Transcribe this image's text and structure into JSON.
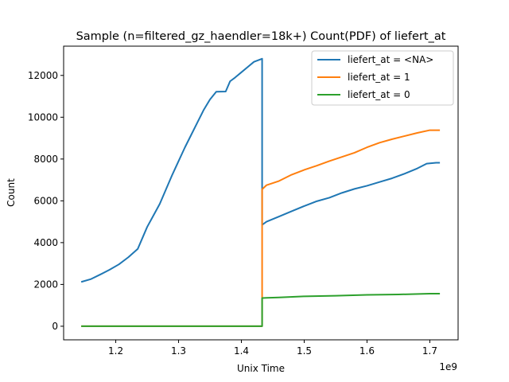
{
  "chart_data": {
    "type": "line",
    "title": "Sample (n=filtered_gz_haendler=18k+) Count(PDF) of liefert_at",
    "xlabel": "Unix Time",
    "ylabel": "Count",
    "x_offset_label": "1e9",
    "xlim": [
      1.117,
      1.745
    ],
    "ylim": [
      -650,
      13400
    ],
    "x_unit_multiplier": 1000000000,
    "xticks": [
      {
        "value": 1.2,
        "label": "1.2"
      },
      {
        "value": 1.3,
        "label": "1.3"
      },
      {
        "value": 1.4,
        "label": "1.4"
      },
      {
        "value": 1.5,
        "label": "1.5"
      },
      {
        "value": 1.6,
        "label": "1.6"
      },
      {
        "value": 1.7,
        "label": "1.7"
      }
    ],
    "yticks": [
      {
        "value": 0,
        "label": "0"
      },
      {
        "value": 2000,
        "label": "2000"
      },
      {
        "value": 4000,
        "label": "4000"
      },
      {
        "value": 6000,
        "label": "6000"
      },
      {
        "value": 8000,
        "label": "8000"
      },
      {
        "value": 10000,
        "label": "10000"
      },
      {
        "value": 12000,
        "label": "12000"
      }
    ],
    "grid": false,
    "legend_position": "top-right",
    "series": [
      {
        "name": "liefert_at = <NA>",
        "color": "#1f77b4",
        "points": [
          [
            1.145,
            2120
          ],
          [
            1.16,
            2250
          ],
          [
            1.175,
            2470
          ],
          [
            1.19,
            2700
          ],
          [
            1.205,
            2960
          ],
          [
            1.22,
            3300
          ],
          [
            1.235,
            3700
          ],
          [
            1.24,
            4050
          ],
          [
            1.25,
            4750
          ],
          [
            1.26,
            5300
          ],
          [
            1.27,
            5850
          ],
          [
            1.28,
            6550
          ],
          [
            1.29,
            7250
          ],
          [
            1.3,
            7900
          ],
          [
            1.31,
            8550
          ],
          [
            1.32,
            9150
          ],
          [
            1.33,
            9750
          ],
          [
            1.34,
            10350
          ],
          [
            1.35,
            10850
          ],
          [
            1.36,
            11220
          ],
          [
            1.375,
            11230
          ],
          [
            1.382,
            11720
          ],
          [
            1.39,
            11900
          ],
          [
            1.4,
            12150
          ],
          [
            1.41,
            12400
          ],
          [
            1.42,
            12650
          ],
          [
            1.433,
            12800
          ],
          [
            1.433,
            4850
          ],
          [
            1.44,
            5000
          ],
          [
            1.46,
            5250
          ],
          [
            1.48,
            5500
          ],
          [
            1.5,
            5750
          ],
          [
            1.52,
            5980
          ],
          [
            1.54,
            6150
          ],
          [
            1.56,
            6380
          ],
          [
            1.58,
            6570
          ],
          [
            1.6,
            6720
          ],
          [
            1.62,
            6900
          ],
          [
            1.64,
            7080
          ],
          [
            1.66,
            7300
          ],
          [
            1.68,
            7550
          ],
          [
            1.695,
            7780
          ],
          [
            1.71,
            7820
          ],
          [
            1.716,
            7820
          ]
        ]
      },
      {
        "name": "liefert_at = 1",
        "color": "#ff7f0e",
        "points": [
          [
            1.145,
            0
          ],
          [
            1.433,
            0
          ],
          [
            1.433,
            6550
          ],
          [
            1.44,
            6750
          ],
          [
            1.46,
            6950
          ],
          [
            1.48,
            7250
          ],
          [
            1.5,
            7480
          ],
          [
            1.52,
            7680
          ],
          [
            1.54,
            7900
          ],
          [
            1.56,
            8100
          ],
          [
            1.58,
            8300
          ],
          [
            1.6,
            8560
          ],
          [
            1.62,
            8780
          ],
          [
            1.64,
            8950
          ],
          [
            1.66,
            9100
          ],
          [
            1.68,
            9250
          ],
          [
            1.7,
            9380
          ],
          [
            1.716,
            9380
          ]
        ]
      },
      {
        "name": "liefert_at = 0",
        "color": "#2ca02c",
        "points": [
          [
            1.145,
            0
          ],
          [
            1.433,
            0
          ],
          [
            1.433,
            1350
          ],
          [
            1.44,
            1360
          ],
          [
            1.46,
            1380
          ],
          [
            1.5,
            1430
          ],
          [
            1.55,
            1460
          ],
          [
            1.6,
            1500
          ],
          [
            1.65,
            1520
          ],
          [
            1.7,
            1560
          ],
          [
            1.716,
            1560
          ]
        ]
      }
    ]
  }
}
